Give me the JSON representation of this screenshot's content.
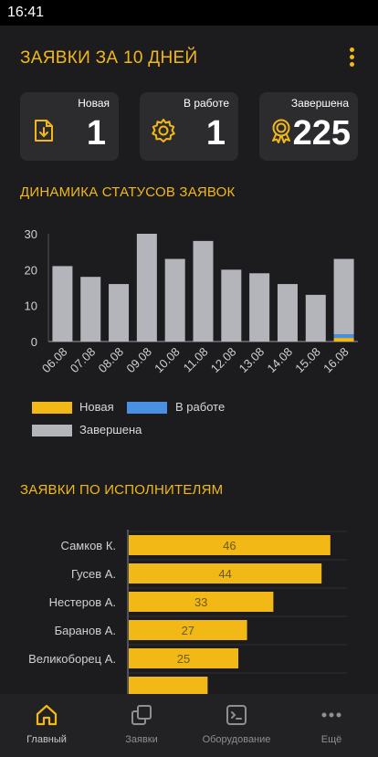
{
  "status": {
    "time": "16:41"
  },
  "header": {
    "title": "ЗАЯВКИ ЗА 10 ДНЕЙ"
  },
  "cards": [
    {
      "label": "Новая",
      "value": "1",
      "icon": "download-doc-icon"
    },
    {
      "label": "В работе",
      "value": "1",
      "icon": "gear-icon"
    },
    {
      "label": "Завершена",
      "value": "225",
      "icon": "award-icon"
    }
  ],
  "sections": {
    "status_dynamics": "ДИНАМИКА СТАТУСОВ ЗАЯВОК",
    "by_executor": "ЗАЯВКИ ПО ИСПОЛНИТЕЛЯМ"
  },
  "colors": {
    "accent": "#f2b816",
    "in_work": "#4a90e2",
    "done": "#b4b5bb"
  },
  "chart_data": [
    {
      "type": "bar",
      "categories": [
        "06.08",
        "07.08",
        "08.08",
        "09.08",
        "10.08",
        "11.08",
        "12.08",
        "13.08",
        "14.08",
        "15.08",
        "16.08"
      ],
      "series": [
        {
          "name": "Новая",
          "values": [
            0,
            0,
            0,
            0,
            0,
            0,
            0,
            0,
            0,
            0,
            1
          ]
        },
        {
          "name": "В работе",
          "values": [
            0,
            0,
            0,
            0,
            0,
            0,
            0,
            0,
            0,
            0,
            1
          ]
        },
        {
          "name": "Завершена",
          "values": [
            21,
            18,
            16,
            30,
            23,
            28,
            20,
            19,
            16,
            13,
            21
          ]
        }
      ],
      "yticks": [
        "0",
        "10",
        "20",
        "30"
      ],
      "ylim": [
        0,
        30
      ],
      "stacked": true,
      "legend": "bottom"
    },
    {
      "type": "bar",
      "orientation": "horizontal",
      "categories": [
        "Самков К.",
        "Гусев А.",
        "Нестеров А.",
        "Баранов А.",
        "Великоборец А."
      ],
      "values": [
        46,
        44,
        33,
        27,
        25
      ],
      "xlim": [
        0,
        50
      ]
    }
  ],
  "nav": [
    {
      "label": "Главный",
      "icon": "home-icon"
    },
    {
      "label": "Заявки",
      "icon": "copy-icon"
    },
    {
      "label": "Оборудование",
      "icon": "terminal-icon"
    },
    {
      "label": "Ещё",
      "icon": "more-icon"
    }
  ]
}
